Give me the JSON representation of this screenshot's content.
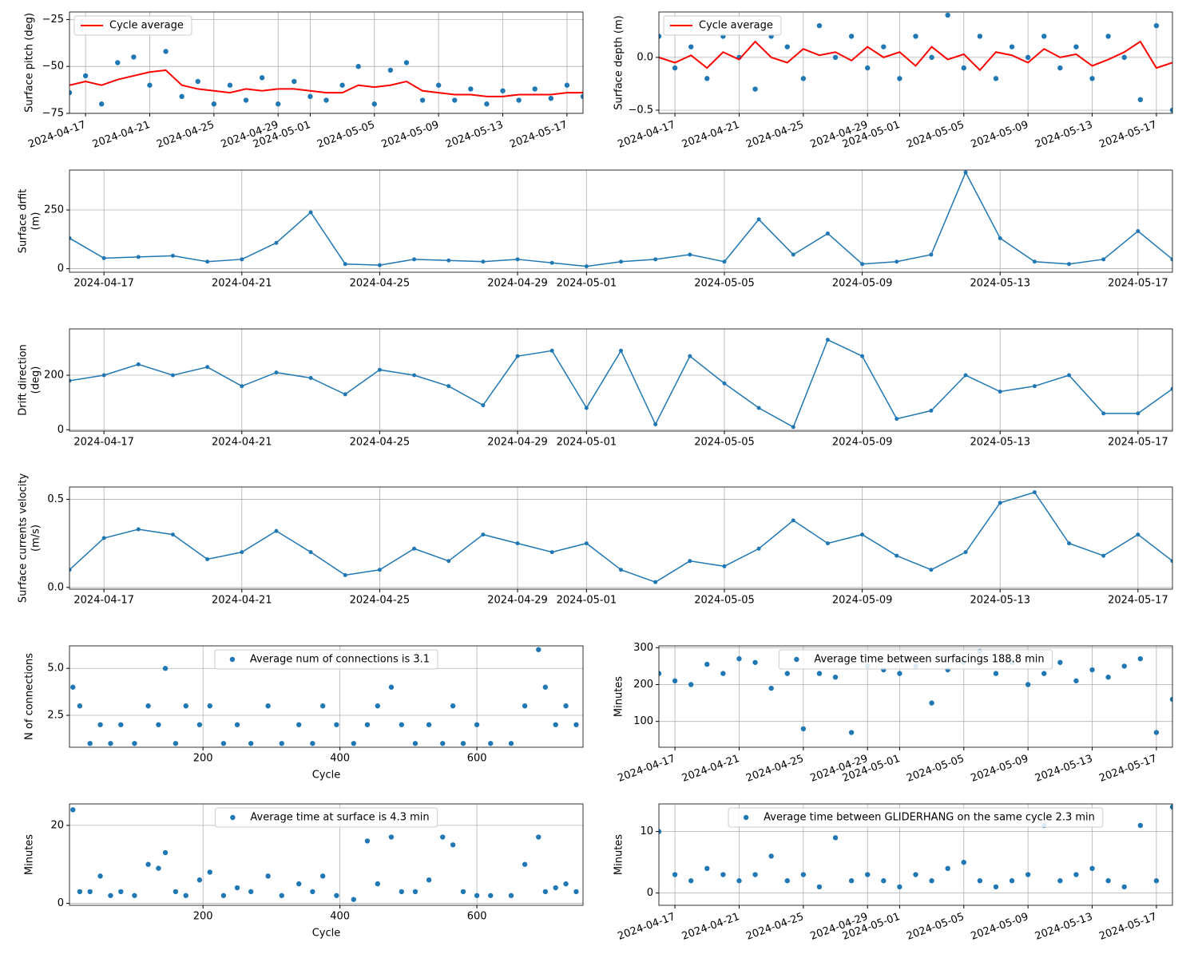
{
  "chart_data": [
    {
      "type": "combo",
      "ylabel": [
        "Surface pitch (deg)"
      ],
      "x": [
        "2024-04-16",
        "2024-04-17",
        "2024-04-18",
        "2024-04-19",
        "2024-04-20",
        "2024-04-21",
        "2024-04-22",
        "2024-04-23",
        "2024-04-24",
        "2024-04-25",
        "2024-04-26",
        "2024-04-27",
        "2024-04-28",
        "2024-04-29",
        "2024-04-30",
        "2024-05-01",
        "2024-05-02",
        "2024-05-03",
        "2024-05-04",
        "2024-05-05",
        "2024-05-06",
        "2024-05-07",
        "2024-05-08",
        "2024-05-09",
        "2024-05-10",
        "2024-05-11",
        "2024-05-12",
        "2024-05-13",
        "2024-05-14",
        "2024-05-15",
        "2024-05-16",
        "2024-05-17",
        "2024-05-18"
      ],
      "series": [
        {
          "kind": "scatter",
          "color": "#1f77b4",
          "values": [
            -64,
            -55,
            -70,
            -48,
            -45,
            -60,
            -42,
            -66,
            -58,
            -70,
            -60,
            -68,
            -56,
            -70,
            -58,
            -66,
            -68,
            -60,
            -50,
            -70,
            -52,
            -48,
            -68,
            -60,
            -68,
            -62,
            -70,
            -63,
            -68,
            -62,
            -67,
            -60,
            -66
          ]
        },
        {
          "kind": "line",
          "name": "Cycle average",
          "color": "red",
          "values": [
            -60,
            -58,
            -60,
            -57,
            -55,
            -53,
            -52,
            -60,
            -62,
            -63,
            -64,
            -62,
            -63,
            -62,
            -62,
            -63,
            -64,
            -64,
            -60,
            -61,
            -60,
            -58,
            -63,
            -64,
            -65,
            -65,
            -66,
            -66,
            -65,
            -65,
            -65,
            -64,
            -64
          ]
        }
      ],
      "xlim": [
        "2024-04-16",
        "2024-05-18"
      ],
      "xticks": [
        "2024-04-17",
        "2024-04-21",
        "2024-04-25",
        "2024-04-29",
        "2024-05-01",
        "2024-05-05",
        "2024-05-09",
        "2024-05-13",
        "2024-05-17"
      ],
      "ylim": [
        -75,
        -21
      ],
      "yticks": [
        {
          "value": -75,
          "label": "−75"
        },
        {
          "value": -50,
          "label": "−50"
        },
        {
          "value": -25,
          "label": "−25"
        }
      ],
      "grid": true,
      "legend": "upper left"
    },
    {
      "type": "combo",
      "ylabel": [
        "Surface depth (m)"
      ],
      "x": [
        "2024-04-16",
        "2024-04-17",
        "2024-04-18",
        "2024-04-19",
        "2024-04-20",
        "2024-04-21",
        "2024-04-22",
        "2024-04-23",
        "2024-04-24",
        "2024-04-25",
        "2024-04-26",
        "2024-04-27",
        "2024-04-28",
        "2024-04-29",
        "2024-04-30",
        "2024-05-01",
        "2024-05-02",
        "2024-05-03",
        "2024-05-04",
        "2024-05-05",
        "2024-05-06",
        "2024-05-07",
        "2024-05-08",
        "2024-05-09",
        "2024-05-10",
        "2024-05-11",
        "2024-05-12",
        "2024-05-13",
        "2024-05-14",
        "2024-05-15",
        "2024-05-16",
        "2024-05-17",
        "2024-05-18"
      ],
      "series": [
        {
          "kind": "scatter",
          "color": "#1f77b4",
          "values": [
            0.2,
            -0.1,
            0.1,
            -0.2,
            0.2,
            0.0,
            -0.3,
            0.2,
            0.1,
            -0.2,
            0.3,
            0.0,
            0.2,
            -0.1,
            0.1,
            -0.2,
            0.2,
            0.0,
            0.4,
            -0.1,
            0.2,
            -0.2,
            0.1,
            0.0,
            0.2,
            -0.1,
            0.1,
            -0.2,
            0.2,
            0.0,
            -0.4,
            0.3,
            -0.5
          ]
        },
        {
          "kind": "line",
          "name": "Cycle average",
          "color": "red",
          "values": [
            0.0,
            -0.05,
            0.02,
            -0.1,
            0.05,
            -0.02,
            0.15,
            0.0,
            -0.05,
            0.08,
            0.02,
            0.05,
            -0.03,
            0.1,
            0.0,
            0.05,
            -0.08,
            0.1,
            -0.02,
            0.03,
            -0.12,
            0.05,
            0.02,
            -0.05,
            0.08,
            0.0,
            0.03,
            -0.08,
            -0.02,
            0.05,
            0.15,
            -0.1,
            -0.05
          ]
        }
      ],
      "xlim": [
        "2024-04-16",
        "2024-05-18"
      ],
      "xticks": [
        "2024-04-17",
        "2024-04-21",
        "2024-04-25",
        "2024-04-29",
        "2024-05-01",
        "2024-05-05",
        "2024-05-09",
        "2024-05-13",
        "2024-05-17"
      ],
      "ylim": [
        -0.53,
        0.43
      ],
      "yticks": [
        {
          "value": -0.5,
          "label": "−0.5"
        },
        {
          "value": 0,
          "label": "0.0"
        }
      ],
      "grid": true,
      "legend": "upper left"
    },
    {
      "type": "line",
      "ylabel": [
        "Surface drfit",
        "(m)"
      ],
      "x": [
        "2024-04-16",
        "2024-04-17",
        "2024-04-18",
        "2024-04-19",
        "2024-04-20",
        "2024-04-21",
        "2024-04-22",
        "2024-04-23",
        "2024-04-24",
        "2024-04-25",
        "2024-04-26",
        "2024-04-27",
        "2024-04-28",
        "2024-04-29",
        "2024-04-30",
        "2024-05-01",
        "2024-05-02",
        "2024-05-03",
        "2024-05-04",
        "2024-05-05",
        "2024-05-06",
        "2024-05-07",
        "2024-05-08",
        "2024-05-09",
        "2024-05-10",
        "2024-05-11",
        "2024-05-12",
        "2024-05-13",
        "2024-05-14",
        "2024-05-15",
        "2024-05-16",
        "2024-05-17",
        "2024-05-18"
      ],
      "series": [
        {
          "kind": "line",
          "color": "#1f77b4",
          "values": [
            130,
            45,
            50,
            55,
            30,
            40,
            110,
            240,
            20,
            15,
            40,
            35,
            30,
            40,
            25,
            10,
            30,
            40,
            60,
            30,
            210,
            60,
            150,
            20,
            30,
            60,
            410,
            130,
            30,
            20,
            40,
            160,
            40
          ]
        }
      ],
      "xlim": [
        "2024-04-16",
        "2024-05-18"
      ],
      "xticks": [
        "2024-04-17",
        "2024-04-21",
        "2024-04-25",
        "2024-04-29",
        "2024-05-01",
        "2024-05-05",
        "2024-05-09",
        "2024-05-13",
        "2024-05-17"
      ],
      "ylim": [
        -15,
        420
      ],
      "yticks": [
        0,
        250
      ],
      "grid": true
    },
    {
      "type": "line",
      "ylabel": [
        "Drift direction",
        "(deg)"
      ],
      "x": [
        "2024-04-16",
        "2024-04-17",
        "2024-04-18",
        "2024-04-19",
        "2024-04-20",
        "2024-04-21",
        "2024-04-22",
        "2024-04-23",
        "2024-04-24",
        "2024-04-25",
        "2024-04-26",
        "2024-04-27",
        "2024-04-28",
        "2024-04-29",
        "2024-04-30",
        "2024-05-01",
        "2024-05-02",
        "2024-05-03",
        "2024-05-04",
        "2024-05-05",
        "2024-05-06",
        "2024-05-07",
        "2024-05-08",
        "2024-05-09",
        "2024-05-10",
        "2024-05-11",
        "2024-05-12",
        "2024-05-13",
        "2024-05-14",
        "2024-05-15",
        "2024-05-16",
        "2024-05-17",
        "2024-05-18"
      ],
      "series": [
        {
          "kind": "line",
          "color": "#1f77b4",
          "values": [
            180,
            200,
            240,
            200,
            230,
            160,
            210,
            190,
            130,
            220,
            200,
            160,
            90,
            270,
            290,
            80,
            290,
            20,
            270,
            170,
            80,
            10,
            330,
            270,
            40,
            70,
            200,
            140,
            160,
            200,
            60,
            60,
            150
          ]
        }
      ],
      "xlim": [
        "2024-04-16",
        "2024-05-18"
      ],
      "xticks": [
        "2024-04-17",
        "2024-04-21",
        "2024-04-25",
        "2024-04-29",
        "2024-05-01",
        "2024-05-05",
        "2024-05-09",
        "2024-05-13",
        "2024-05-17"
      ],
      "ylim": [
        -5,
        370
      ],
      "yticks": [
        0,
        200
      ],
      "grid": true
    },
    {
      "type": "line",
      "ylabel": [
        "Surface currents velocity",
        "(m/s)"
      ],
      "x": [
        "2024-04-16",
        "2024-04-17",
        "2024-04-18",
        "2024-04-19",
        "2024-04-20",
        "2024-04-21",
        "2024-04-22",
        "2024-04-23",
        "2024-04-24",
        "2024-04-25",
        "2024-04-26",
        "2024-04-27",
        "2024-04-28",
        "2024-04-29",
        "2024-04-30",
        "2024-05-01",
        "2024-05-02",
        "2024-05-03",
        "2024-05-04",
        "2024-05-05",
        "2024-05-06",
        "2024-05-07",
        "2024-05-08",
        "2024-05-09",
        "2024-05-10",
        "2024-05-11",
        "2024-05-12",
        "2024-05-13",
        "2024-05-14",
        "2024-05-15",
        "2024-05-16",
        "2024-05-17",
        "2024-05-18"
      ],
      "series": [
        {
          "kind": "line",
          "color": "#1f77b4",
          "values": [
            0.1,
            0.28,
            0.33,
            0.3,
            0.16,
            0.2,
            0.32,
            0.2,
            0.07,
            0.1,
            0.22,
            0.15,
            0.3,
            0.25,
            0.2,
            0.25,
            0.1,
            0.03,
            0.15,
            0.12,
            0.22,
            0.38,
            0.25,
            0.3,
            0.18,
            0.1,
            0.2,
            0.48,
            0.54,
            0.25,
            0.18,
            0.3,
            0.15
          ]
        }
      ],
      "xlim": [
        "2024-04-16",
        "2024-05-18"
      ],
      "xticks": [
        "2024-04-17",
        "2024-04-21",
        "2024-04-25",
        "2024-04-29",
        "2024-05-01",
        "2024-05-05",
        "2024-05-09",
        "2024-05-13",
        "2024-05-17"
      ],
      "ylim": [
        -0.01,
        0.57
      ],
      "yticks": [
        {
          "value": 0,
          "label": "0.0"
        },
        {
          "value": 0.5,
          "label": "0.5"
        }
      ],
      "grid": true
    },
    {
      "type": "scatter",
      "ylabel": [
        "N of connections"
      ],
      "xlabel": "Cycle",
      "x": [
        10,
        20,
        35,
        50,
        65,
        80,
        100,
        120,
        135,
        145,
        160,
        175,
        195,
        210,
        230,
        250,
        270,
        295,
        315,
        340,
        360,
        375,
        395,
        420,
        440,
        455,
        475,
        490,
        510,
        530,
        550,
        565,
        580,
        600,
        620,
        650,
        670,
        690,
        700,
        715,
        730,
        745
      ],
      "series": [
        {
          "kind": "scatter",
          "name": "Average num of connections is 3.1",
          "color": "#1f77b4",
          "values": [
            4,
            3,
            1,
            2,
            1,
            2,
            1,
            3,
            2,
            5,
            1,
            3,
            2,
            3,
            1,
            2,
            1,
            3,
            1,
            2,
            1,
            3,
            2,
            1,
            2,
            3,
            4,
            2,
            1,
            2,
            1,
            3,
            1,
            2,
            1,
            1,
            3,
            6,
            4,
            2,
            3,
            2
          ]
        }
      ],
      "xlim": [
        5,
        755
      ],
      "xticks": [
        200,
        400,
        600
      ],
      "ylim": [
        0.8,
        6.2
      ],
      "yticks": [
        2.5,
        {
          "value": 5,
          "label": "5.0"
        }
      ],
      "grid": true,
      "legend": "upper center"
    },
    {
      "type": "scatter",
      "ylabel": [
        "Minutes"
      ],
      "x": [
        "2024-04-16",
        "2024-04-17",
        "2024-04-18",
        "2024-04-19",
        "2024-04-20",
        "2024-04-21",
        "2024-04-22",
        "2024-04-23",
        "2024-04-24",
        "2024-04-25",
        "2024-04-26",
        "2024-04-27",
        "2024-04-28",
        "2024-04-29",
        "2024-04-30",
        "2024-05-01",
        "2024-05-02",
        "2024-05-03",
        "2024-05-04",
        "2024-05-05",
        "2024-05-06",
        "2024-05-07",
        "2024-05-08",
        "2024-05-09",
        "2024-05-10",
        "2024-05-11",
        "2024-05-12",
        "2024-05-13",
        "2024-05-14",
        "2024-05-15",
        "2024-05-16",
        "2024-05-17",
        "2024-05-18"
      ],
      "series": [
        {
          "kind": "scatter",
          "name": "Average time between surfacings 188.8 min",
          "color": "#1f77b4",
          "values": [
            230,
            210,
            200,
            255,
            230,
            270,
            260,
            190,
            230,
            80,
            230,
            220,
            70,
            250,
            240,
            230,
            250,
            150,
            240,
            260,
            290,
            230,
            260,
            200,
            230,
            260,
            210,
            240,
            220,
            250,
            270,
            70,
            160
          ]
        }
      ],
      "xlim": [
        "2024-04-16",
        "2024-05-18"
      ],
      "xticks": [
        "2024-04-17",
        "2024-04-21",
        "2024-04-25",
        "2024-04-29",
        "2024-05-01",
        "2024-05-05",
        "2024-05-09",
        "2024-05-13",
        "2024-05-17"
      ],
      "ylim": [
        30,
        305
      ],
      "yticks": [
        100,
        200,
        300
      ],
      "grid": true,
      "legend": "upper center"
    },
    {
      "type": "scatter",
      "ylabel": [
        "Minutes"
      ],
      "xlabel": "Cycle",
      "x": [
        10,
        20,
        35,
        50,
        65,
        80,
        100,
        120,
        135,
        145,
        160,
        175,
        195,
        210,
        230,
        250,
        270,
        295,
        315,
        340,
        360,
        375,
        395,
        420,
        440,
        455,
        475,
        490,
        510,
        530,
        550,
        565,
        580,
        600,
        620,
        650,
        670,
        690,
        700,
        715,
        730,
        745
      ],
      "series": [
        {
          "kind": "scatter",
          "name": "Average time at surface is 4.3 min",
          "color": "#1f77b4",
          "values": [
            24,
            3,
            3,
            7,
            2,
            3,
            2,
            10,
            9,
            13,
            3,
            2,
            6,
            8,
            2,
            4,
            3,
            7,
            2,
            5,
            3,
            7,
            2,
            1,
            16,
            5,
            17,
            3,
            3,
            6,
            17,
            15,
            3,
            2,
            2,
            2,
            10,
            17,
            3,
            4,
            5,
            3
          ]
        }
      ],
      "xlim": [
        5,
        755
      ],
      "xticks": [
        200,
        400,
        600
      ],
      "ylim": [
        -0.5,
        25.5
      ],
      "yticks": [
        0,
        20
      ],
      "grid": true,
      "legend": "upper center"
    },
    {
      "type": "scatter",
      "ylabel": [
        "Minutes"
      ],
      "x": [
        "2024-04-16",
        "2024-04-17",
        "2024-04-18",
        "2024-04-19",
        "2024-04-20",
        "2024-04-21",
        "2024-04-22",
        "2024-04-23",
        "2024-04-24",
        "2024-04-25",
        "2024-04-26",
        "2024-04-27",
        "2024-04-28",
        "2024-04-29",
        "2024-04-30",
        "2024-05-01",
        "2024-05-02",
        "2024-05-03",
        "2024-05-04",
        "2024-05-05",
        "2024-05-06",
        "2024-05-07",
        "2024-05-08",
        "2024-05-09",
        "2024-05-10",
        "2024-05-11",
        "2024-05-12",
        "2024-05-13",
        "2024-05-14",
        "2024-05-15",
        "2024-05-16",
        "2024-05-17",
        "2024-05-18"
      ],
      "series": [
        {
          "kind": "scatter",
          "name": "Average time between GLIDERHANG on the same cycle 2.3 min",
          "color": "#1f77b4",
          "values": [
            10,
            3,
            2,
            4,
            3,
            2,
            3,
            6,
            2,
            3,
            1,
            9,
            2,
            3,
            2,
            1,
            3,
            2,
            4,
            5,
            2,
            1,
            2,
            3,
            11,
            2,
            3,
            4,
            2,
            1,
            11,
            2,
            14
          ]
        }
      ],
      "xlim": [
        "2024-04-16",
        "2024-05-18"
      ],
      "xticks": [
        "2024-04-17",
        "2024-04-21",
        "2024-04-25",
        "2024-04-29",
        "2024-05-01",
        "2024-05-05",
        "2024-05-09",
        "2024-05-13",
        "2024-05-17"
      ],
      "ylim": [
        -2,
        14.5
      ],
      "yticks": [
        0,
        10
      ],
      "grid": true,
      "legend": "upper center"
    }
  ]
}
